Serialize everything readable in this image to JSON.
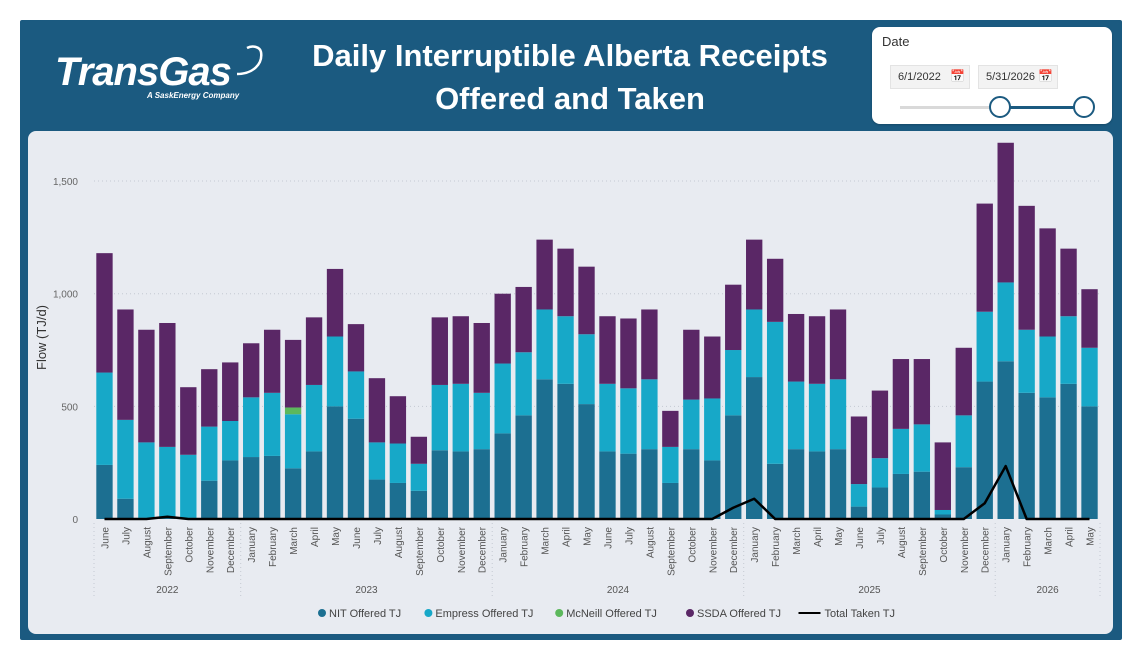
{
  "header": {
    "logo_text": "TransGas",
    "logo_subtitle": "A SaskEnergy Company",
    "title_line1": "Daily Interruptible Alberta Receipts",
    "title_line2": "Offered and Taken"
  },
  "slicer": {
    "label": "Date",
    "start_date": "6/1/2022",
    "end_date": "5/31/2026",
    "calendar_icon": "calendar-icon"
  },
  "colors": {
    "frame": "#1b5a80",
    "panel": "#e8ebf1",
    "nit": "#1c6f91",
    "empress": "#17a8c8",
    "mcneill": "#5cb85c",
    "ssda": "#5a2766",
    "taken": "#000000"
  },
  "chart_data": {
    "type": "bar",
    "stacked": true,
    "ylabel": "Flow (TJ/d)",
    "ylim": [
      0,
      1700
    ],
    "yticks": [
      0,
      500,
      1000,
      1500
    ],
    "ytick_labels": [
      "0",
      "500",
      "1,000",
      "1,500"
    ],
    "grid": true,
    "legend_position": "bottom",
    "categories": [
      "June",
      "July",
      "August",
      "September",
      "October",
      "November",
      "December",
      "January",
      "February",
      "March",
      "April",
      "May",
      "June",
      "July",
      "August",
      "September",
      "October",
      "November",
      "December",
      "January",
      "February",
      "March",
      "April",
      "May",
      "June",
      "July",
      "August",
      "September",
      "October",
      "November",
      "December",
      "January",
      "February",
      "March",
      "April",
      "May",
      "June",
      "July",
      "August",
      "September",
      "October",
      "November",
      "December",
      "January",
      "February",
      "March",
      "April",
      "May"
    ],
    "years": [
      {
        "label": "2022",
        "start": 0,
        "end": 6
      },
      {
        "label": "2023",
        "start": 7,
        "end": 18
      },
      {
        "label": "2024",
        "start": 19,
        "end": 30
      },
      {
        "label": "2025",
        "start": 31,
        "end": 42
      },
      {
        "label": "2026",
        "start": 43,
        "end": 47
      }
    ],
    "series": [
      {
        "name": "NIT Offered TJ",
        "color": "#1c6f91",
        "type": "bar",
        "values": [
          240,
          90,
          5,
          5,
          5,
          170,
          260,
          275,
          280,
          225,
          300,
          500,
          445,
          175,
          160,
          125,
          305,
          300,
          310,
          380,
          460,
          620,
          600,
          510,
          300,
          290,
          310,
          160,
          310,
          260,
          460,
          630,
          245,
          310,
          300,
          310,
          55,
          140,
          200,
          210,
          20,
          230,
          610,
          700,
          560,
          540,
          600,
          500
        ]
      },
      {
        "name": "Empress Offered TJ",
        "color": "#17a8c8",
        "type": "bar",
        "values": [
          410,
          350,
          335,
          315,
          280,
          240,
          175,
          265,
          280,
          240,
          295,
          310,
          210,
          165,
          175,
          120,
          290,
          300,
          250,
          310,
          280,
          310,
          300,
          310,
          300,
          290,
          310,
          160,
          220,
          275,
          290,
          300,
          630,
          300,
          300,
          310,
          100,
          130,
          200,
          210,
          20,
          230,
          310,
          350,
          280,
          270,
          300,
          260
        ]
      },
      {
        "name": "McNeill Offered TJ",
        "color": "#5cb85c",
        "type": "bar",
        "values": [
          0,
          0,
          0,
          0,
          0,
          0,
          0,
          0,
          0,
          30,
          0,
          0,
          0,
          0,
          0,
          0,
          0,
          0,
          0,
          0,
          0,
          0,
          0,
          0,
          0,
          0,
          0,
          0,
          0,
          0,
          0,
          0,
          0,
          0,
          0,
          0,
          0,
          0,
          0,
          0,
          0,
          0,
          0,
          0,
          0,
          0,
          0,
          0
        ]
      },
      {
        "name": "SSDA Offered TJ",
        "color": "#5a2766",
        "type": "bar",
        "values": [
          530,
          490,
          500,
          550,
          300,
          255,
          260,
          240,
          280,
          300,
          300,
          300,
          210,
          285,
          210,
          120,
          300,
          300,
          310,
          310,
          290,
          310,
          300,
          300,
          300,
          310,
          310,
          160,
          310,
          275,
          290,
          310,
          280,
          300,
          300,
          310,
          300,
          300,
          310,
          290,
          300,
          300,
          480,
          620,
          550,
          480,
          300,
          260
        ]
      },
      {
        "name": "Total Taken TJ",
        "color": "#000000",
        "type": "line",
        "values": [
          0,
          0,
          0,
          10,
          0,
          0,
          0,
          0,
          0,
          0,
          0,
          0,
          0,
          0,
          0,
          0,
          0,
          0,
          0,
          0,
          0,
          0,
          0,
          0,
          0,
          0,
          0,
          0,
          0,
          0,
          50,
          90,
          0,
          0,
          0,
          0,
          0,
          0,
          0,
          0,
          0,
          0,
          70,
          235,
          0,
          0,
          0,
          0
        ]
      }
    ]
  }
}
